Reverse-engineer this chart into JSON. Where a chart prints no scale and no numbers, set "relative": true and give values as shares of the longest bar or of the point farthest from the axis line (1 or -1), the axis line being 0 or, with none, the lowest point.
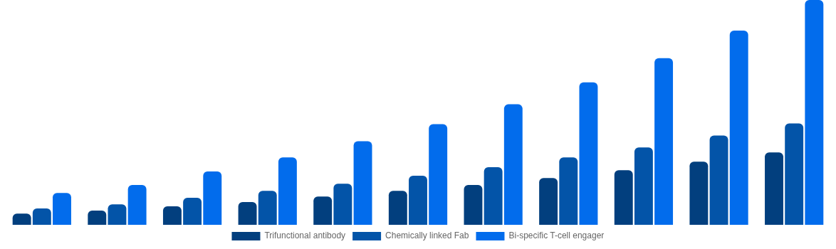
{
  "chart_data": {
    "type": "bar",
    "relative": true,
    "legend": "bottom",
    "tick_labels": false,
    "categories": [
      null,
      null,
      null,
      null,
      null,
      null,
      null,
      null,
      null,
      null,
      null
    ],
    "series": [
      {
        "name": "Trifunctional antibody",
        "color": "#023f7e",
        "values": [
          0.05,
          0.063,
          0.082,
          0.101,
          0.126,
          0.151,
          0.177,
          0.208,
          0.243,
          0.281,
          0.322
        ]
      },
      {
        "name": "Chemically linked Fab",
        "color": "#0354a8",
        "values": [
          0.073,
          0.091,
          0.12,
          0.151,
          0.183,
          0.218,
          0.256,
          0.3,
          0.344,
          0.397,
          0.451
        ]
      },
      {
        "name": "Bi-specific T-cell engager",
        "color": "#026cec",
        "values": [
          0.142,
          0.177,
          0.237,
          0.3,
          0.372,
          0.448,
          0.536,
          0.634,
          0.741,
          0.864,
          1
        ]
      }
    ]
  }
}
